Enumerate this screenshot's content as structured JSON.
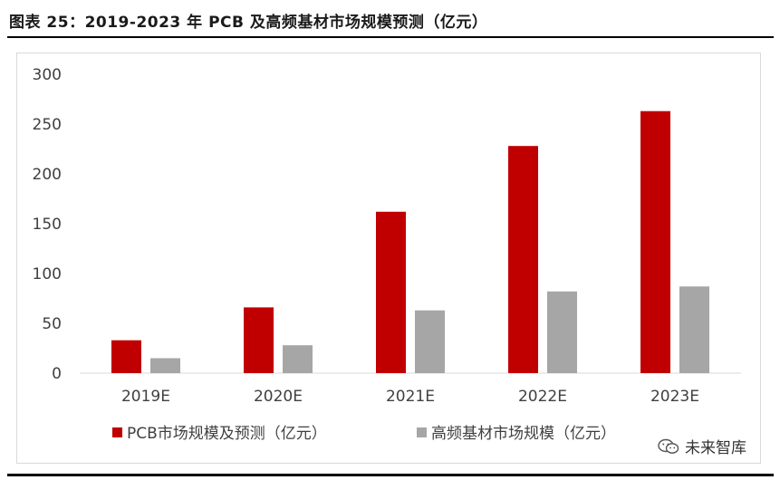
{
  "figure": {
    "title": "图表 25：2019-2023 年 PCB 及高频基材市场规模预测（亿元）"
  },
  "chart_data": {
    "type": "bar",
    "title": "",
    "xlabel": "",
    "ylabel": "",
    "categories": [
      "2019E",
      "2020E",
      "2021E",
      "2022E",
      "2023E"
    ],
    "series": [
      {
        "name": "PCB市场规模及预测（亿元）",
        "color": "#c00000",
        "values": [
          33,
          66,
          162,
          228,
          263
        ]
      },
      {
        "name": "高频基材市场规模（亿元）",
        "color": "#a6a6a6",
        "values": [
          15,
          28,
          63,
          82,
          87
        ]
      }
    ],
    "ylim": [
      0,
      300
    ],
    "yticks": [
      "0",
      "50",
      "100",
      "150",
      "200",
      "250",
      "300"
    ],
    "grid": false,
    "legend": "bottom"
  },
  "watermark": {
    "text": "未来智库",
    "icon": "wechat-icon"
  }
}
